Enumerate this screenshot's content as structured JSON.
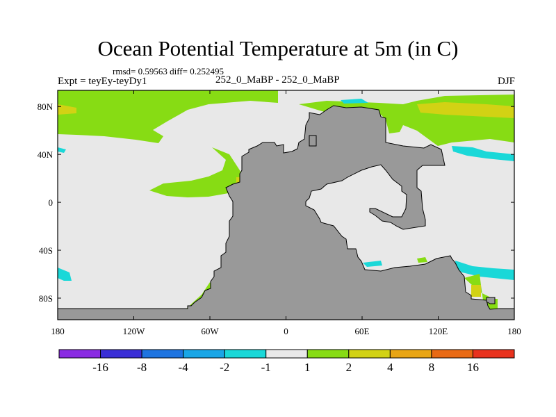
{
  "title": "Ocean Potential Temperature at 5m (in C)",
  "stats_line": "rmsd= 0.59563 diff= 0.252495",
  "left_label": "Expt = teyEy-teyDy1",
  "center_label": "252_0_MaBP - 252_0_MaBP",
  "right_label": "DJF",
  "lon_ticks": [
    {
      "lon": -180,
      "label": "180"
    },
    {
      "lon": -120,
      "label": "120W"
    },
    {
      "lon": -60,
      "label": "60W"
    },
    {
      "lon": 0,
      "label": "0"
    },
    {
      "lon": 60,
      "label": "60E"
    },
    {
      "lon": 120,
      "label": "120E"
    },
    {
      "lon": 180,
      "label": "180"
    }
  ],
  "lat_ticks": [
    {
      "lat": 80,
      "label": "80N"
    },
    {
      "lat": 40,
      "label": "40N"
    },
    {
      "lat": 0,
      "label": "0"
    },
    {
      "lat": -40,
      "label": "40S"
    },
    {
      "lat": -80,
      "label": "80S"
    }
  ],
  "colorbar": {
    "colors": [
      "#8a2be2",
      "#3a2fd6",
      "#1e74e0",
      "#1aa6e6",
      "#1ad8d8",
      "#e8e8e8",
      "#87dc14",
      "#d2d214",
      "#e8a514",
      "#e86a14",
      "#e8321e"
    ],
    "labels": [
      "-16",
      "-8",
      "-4",
      "-2",
      "-1",
      "1",
      "2",
      "4",
      "8",
      "16"
    ]
  },
  "colors": {
    "land": "#999999",
    "ocean_neutral": "#e8e8e8",
    "green": "#87dc14",
    "yellow": "#d2d214",
    "cyan": "#1ad8d8",
    "sky": "#1aa6e6"
  }
}
